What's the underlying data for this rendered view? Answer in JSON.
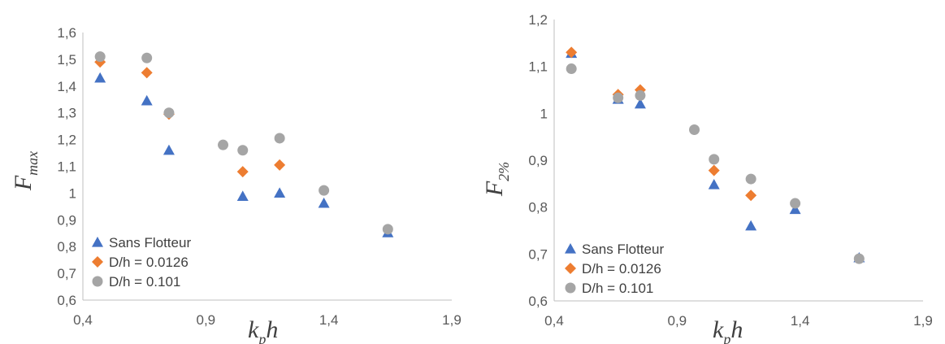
{
  "colors": {
    "series": [
      "#4472C4",
      "#ED7D31",
      "#A5A5A5"
    ],
    "axis": "#bfbfbf",
    "text": "#595959"
  },
  "chart_data": [
    {
      "type": "scatter",
      "title": "",
      "xlabel": {
        "main": "k",
        "sub": "p",
        "tail": "h"
      },
      "ylabel": {
        "main": "F",
        "sub": "max"
      },
      "xlim": [
        0.4,
        1.9
      ],
      "ylim": [
        0.6,
        1.6
      ],
      "x_ticks": [
        "0,4",
        "0,9",
        "1,4",
        "1,9"
      ],
      "y_ticks": [
        "0,6",
        "0,7",
        "0,8",
        "0,9",
        "1",
        "1,1",
        "1,2",
        "1,3",
        "1,4",
        "1,5",
        "1,6"
      ],
      "legend_position": "bottom-left",
      "series": [
        {
          "name": "Sans Flotteur",
          "marker": "triangle",
          "x": [
            0.47,
            0.66,
            0.75,
            1.05,
            1.2,
            1.38,
            1.64
          ],
          "y": [
            1.43,
            1.345,
            1.16,
            0.988,
            1.0,
            0.962,
            0.852
          ]
        },
        {
          "name": "D/h = 0.0126",
          "marker": "diamond",
          "x": [
            0.47,
            0.66,
            0.75,
            1.05,
            1.2
          ],
          "y": [
            1.49,
            1.45,
            1.295,
            1.08,
            1.105
          ]
        },
        {
          "name": "D/h = 0.101",
          "marker": "circle",
          "x": [
            0.47,
            0.66,
            0.75,
            0.97,
            1.05,
            1.2,
            1.38,
            1.64
          ],
          "y": [
            1.51,
            1.505,
            1.3,
            1.18,
            1.16,
            1.205,
            1.01,
            0.865
          ]
        }
      ]
    },
    {
      "type": "scatter",
      "title": "",
      "xlabel": {
        "main": "k",
        "sub": "p",
        "tail": "h"
      },
      "ylabel": {
        "main": "F",
        "sub": "2%"
      },
      "xlim": [
        0.4,
        1.9
      ],
      "ylim": [
        0.6,
        1.2
      ],
      "x_ticks": [
        "0,4",
        "0,9",
        "1,4",
        "1,9"
      ],
      "y_ticks": [
        "0,6",
        "0,7",
        "0,8",
        "0,9",
        "1",
        "1,1",
        "1,2"
      ],
      "legend_position": "bottom-left",
      "series": [
        {
          "name": "Sans Flotteur",
          "marker": "triangle",
          "x": [
            0.47,
            0.66,
            0.75,
            1.05,
            1.2,
            1.38,
            1.64
          ],
          "y": [
            1.128,
            1.03,
            1.02,
            0.848,
            0.76,
            0.795,
            0.692
          ]
        },
        {
          "name": "D/h = 0.0126",
          "marker": "diamond",
          "x": [
            0.47,
            0.66,
            0.75,
            1.05,
            1.2
          ],
          "y": [
            1.13,
            1.04,
            1.05,
            0.878,
            0.825
          ]
        },
        {
          "name": "D/h = 0.101",
          "marker": "circle",
          "x": [
            0.47,
            0.66,
            0.75,
            0.97,
            1.05,
            1.2,
            1.38,
            1.64
          ],
          "y": [
            1.095,
            1.033,
            1.038,
            0.965,
            0.902,
            0.86,
            0.808,
            0.69
          ]
        }
      ]
    }
  ]
}
